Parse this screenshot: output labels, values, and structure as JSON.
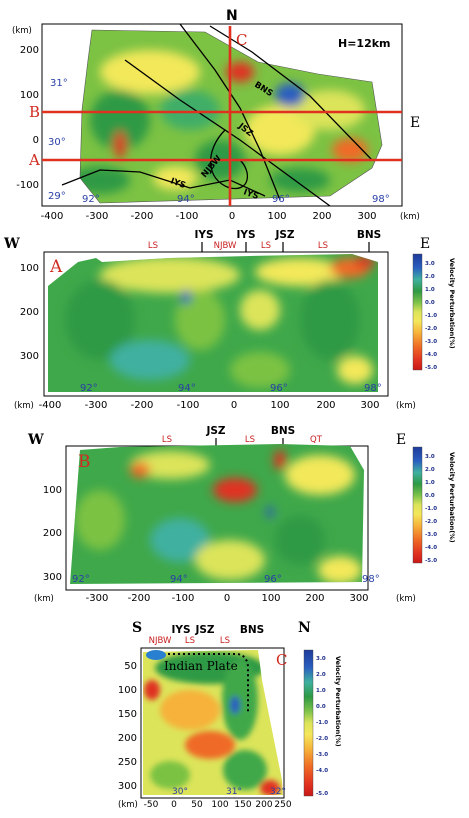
{
  "panel_map": {
    "north_label": "N",
    "depth_label": "H=12km",
    "y_unit": "(km)",
    "x_unit": "(km)",
    "yticks": [
      "200",
      "100",
      "0",
      "-100"
    ],
    "xticks": [
      "-400",
      "-300",
      "-200",
      "-100",
      "0",
      "100",
      "200",
      "300"
    ],
    "lat_labels": [
      "31°",
      "30°",
      "29°"
    ],
    "lon_labels": [
      "92°",
      "94°",
      "96°",
      "98°"
    ],
    "profile_labels": {
      "A": "A",
      "B": "B",
      "C": "C",
      "E": "E"
    },
    "fault_labels": [
      "BNS",
      "JSZ",
      "NJBW",
      "IYS",
      "IYS"
    ]
  },
  "panel_a": {
    "letter": "A",
    "west": "W",
    "east": "E",
    "top_labels_black": [
      "IYS",
      "IYS",
      "JSZ",
      "BNS"
    ],
    "top_labels_red": [
      "LS",
      "NJBW",
      "LS",
      "LS"
    ],
    "yticks": [
      "100",
      "200",
      "300"
    ],
    "y_unit": "(km)",
    "xticks": [
      "-400",
      "-300",
      "-200",
      "-100",
      "0",
      "100",
      "200",
      "300"
    ],
    "x_unit": "(km)",
    "lon_labels": [
      "92°",
      "94°",
      "96°",
      "98°"
    ],
    "colorbar_title": "Velocity Perturbation(%)",
    "colorbar_ticks": [
      "3.0",
      "2.0",
      "1.0",
      "0.0",
      "-1.0",
      "-2.0",
      "-3.0",
      "-4.0",
      "-5.0"
    ]
  },
  "panel_b": {
    "letter": "B",
    "west": "W",
    "east": "E",
    "top_labels_black": [
      "JSZ",
      "BNS"
    ],
    "top_labels_red": [
      "LS",
      "LS",
      "QT"
    ],
    "yticks": [
      "100",
      "200",
      "300"
    ],
    "y_unit": "(km)",
    "xticks": [
      "-300",
      "-200",
      "-100",
      "0",
      "100",
      "200",
      "300"
    ],
    "x_unit": "(km)",
    "lon_labels": [
      "92°",
      "94°",
      "96°",
      "98°"
    ],
    "colorbar_title": "Velocity Perturbation(%)",
    "colorbar_ticks": [
      "3.0",
      "2.0",
      "1.0",
      "0.0",
      "-1.0",
      "-2.0",
      "-3.0",
      "-4.0",
      "-5.0"
    ]
  },
  "panel_c": {
    "letter": "C",
    "south": "S",
    "north": "N",
    "top_labels_black": [
      "IYS",
      "JSZ",
      "BNS"
    ],
    "top_labels_red": [
      "NJBW",
      "LS",
      "LS"
    ],
    "plate_label": "Indian Plate",
    "yticks": [
      "50",
      "100",
      "150",
      "200",
      "250",
      "300"
    ],
    "y_unit": "(km)",
    "xticks": [
      "-50",
      "0",
      "50",
      "100",
      "150",
      "200",
      "250"
    ],
    "lat_labels": [
      "30°",
      "31°",
      "32°"
    ],
    "colorbar_title": "Velocity Perturbation(%)",
    "colorbar_ticks": [
      "3.0",
      "2.0",
      "1.0",
      "0.0",
      "-1.0",
      "-2.0",
      "-3.0",
      "-4.0",
      "-5.0"
    ]
  },
  "colors": {
    "profile_line": "#e03020",
    "deg_label": "#2a3fa6",
    "label_red": "#c81e1e"
  }
}
